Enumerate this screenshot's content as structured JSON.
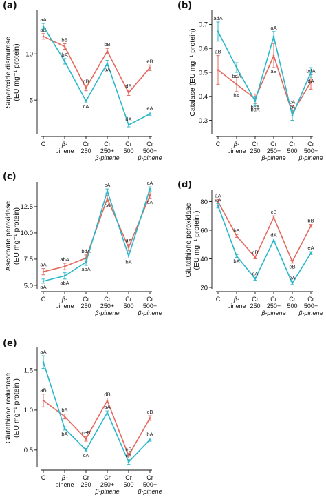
{
  "colors": {
    "control": "#2ab7c9",
    "treated": "#e4685d",
    "axis": "#111111"
  },
  "categories": [
    [
      "C"
    ],
    [
      "β-",
      "pinene"
    ],
    [
      "Cr",
      "250"
    ],
    [
      "Cr",
      "250+",
      "β-pinene"
    ],
    [
      "Cr",
      "500"
    ],
    [
      "Cr",
      "500+",
      "β-pinene"
    ]
  ],
  "chart_data": [
    {
      "type": "line",
      "panel": "(a)",
      "ylabel": [
        "Superoxide dismutase",
        "(EU mg⁻¹ protein)"
      ],
      "ylim": [
        1.5,
        14.5
      ],
      "yticks": [
        5,
        10
      ],
      "series": [
        {
          "color": "#2ab7c9",
          "values": [
            13.0,
            9.2,
            4.9,
            9.0,
            2.3,
            3.5
          ],
          "err": [
            0.3,
            0.3,
            0.2,
            0.3,
            0.2,
            0.2
          ],
          "labels": [
            "aA",
            "bA",
            "cA",
            "aA",
            "dA",
            "eA"
          ],
          "pos": [
            "above",
            "above",
            "below",
            "below",
            "above",
            "above"
          ]
        },
        {
          "color": "#e4685d",
          "values": [
            11.9,
            10.8,
            6.3,
            10.3,
            5.8,
            8.5
          ],
          "err": [
            0.3,
            0.3,
            0.3,
            0.3,
            0.3,
            0.3
          ],
          "labels": [
            "aB",
            "bB",
            "cB",
            "bB",
            "dB",
            "eB"
          ],
          "pos": [
            "above",
            "above",
            "above",
            "above",
            "above",
            "above"
          ]
        }
      ]
    },
    {
      "type": "line",
      "panel": "(b)",
      "ylabel": [
        "Catalase (EU mg⁻¹ protein)"
      ],
      "ylim": [
        0.25,
        0.75
      ],
      "yticks": [
        0.3,
        0.4,
        0.5,
        0.6,
        0.7
      ],
      "series": [
        {
          "color": "#2ab7c9",
          "values": [
            0.67,
            0.52,
            0.38,
            0.65,
            0.32,
            0.5
          ],
          "err": [
            0.04,
            0.02,
            0.02,
            0.02,
            0.02,
            0.02
          ],
          "labels": [
            "adA",
            "bdA",
            "bcA",
            "aA",
            "cA",
            "dA"
          ],
          "pos": [
            "above",
            "below",
            "below",
            "above",
            "above",
            "below"
          ]
        },
        {
          "color": "#e4685d",
          "values": [
            0.51,
            0.45,
            0.39,
            0.57,
            0.33,
            0.46
          ],
          "err": [
            0.06,
            0.03,
            0.02,
            0.05,
            0.03,
            0.03
          ],
          "labels": [
            "aB",
            "bA",
            "bcA",
            "aB",
            "cA",
            "bdA"
          ],
          "pos": [
            "above",
            "below",
            "below",
            "below",
            "above",
            "above"
          ]
        }
      ]
    },
    {
      "type": "line",
      "panel": "(c)",
      "ylabel": [
        "Ascorbate peroxidase",
        "(EU mg⁻¹ protein)"
      ],
      "ylim": [
        4.8,
        14.6
      ],
      "yticks": [
        5.0,
        7.5,
        10.0,
        12.5
      ],
      "series": [
        {
          "color": "#2ab7c9",
          "values": [
            5.4,
            5.9,
            7.2,
            14.0,
            7.8,
            14.2
          ],
          "err": [
            0.2,
            0.3,
            0.3,
            0.2,
            0.2,
            0.2
          ],
          "labels": [
            "aA",
            "abA",
            "abA",
            "cA",
            "bA",
            "cA"
          ],
          "pos": [
            "below",
            "below",
            "below",
            "above",
            "below",
            "above"
          ]
        },
        {
          "color": "#e4685d",
          "values": [
            6.3,
            6.8,
            7.6,
            13.3,
            8.6,
            13.6
          ],
          "err": [
            0.3,
            0.3,
            0.3,
            0.3,
            0.3,
            0.3
          ],
          "labels": [
            "aA",
            "abA",
            "bdA",
            "cA",
            "dA",
            "cA"
          ],
          "pos": [
            "above",
            "above",
            "above",
            "below",
            "above",
            "below"
          ]
        }
      ]
    },
    {
      "type": "line",
      "panel": "(d)",
      "ylabel": [
        "Glutathione peroxidase",
        "(EU mg⁻¹ protein )"
      ],
      "ylim": [
        20,
        86
      ],
      "yticks": [
        20,
        40,
        60,
        80
      ],
      "series": [
        {
          "color": "#2ab7c9",
          "values": [
            77,
            42,
            26,
            53,
            23,
            44
          ],
          "err": [
            1.5,
            1.0,
            1.0,
            1.0,
            1.0,
            1.0
          ],
          "labels": [
            "aA",
            "bA",
            "cA",
            "dA",
            "eA",
            "eA"
          ],
          "pos": [
            "above",
            "below",
            "above",
            "above",
            "above",
            "above"
          ]
        },
        {
          "color": "#e4685d",
          "values": [
            80,
            56,
            41,
            69,
            38,
            63
          ],
          "err": [
            1.5,
            1.0,
            1.0,
            1.0,
            1.0,
            1.0
          ],
          "labels": [
            "aA",
            "bB",
            "cB",
            "cB",
            "eB",
            "bB"
          ],
          "pos": [
            "above",
            "above",
            "above",
            "above",
            "below",
            "above"
          ]
        }
      ]
    },
    {
      "type": "line",
      "panel": "(e)",
      "ylabel": [
        "Glutathione reductase",
        "(EU mg⁻¹ protein )"
      ],
      "ylim": [
        0.3,
        1.75
      ],
      "yticks": [
        0.5,
        1.0,
        1.5
      ],
      "series": [
        {
          "color": "#2ab7c9",
          "values": [
            1.6,
            0.77,
            0.5,
            0.97,
            0.35,
            0.63
          ],
          "err": [
            0.08,
            0.02,
            0.02,
            0.02,
            0.03,
            0.02
          ],
          "labels": [
            "aA",
            "bA",
            "cA",
            "aA",
            "cA",
            "bA"
          ],
          "pos": [
            "above",
            "below",
            "below",
            "above",
            "above",
            "above"
          ]
        },
        {
          "color": "#e4685d",
          "values": [
            1.12,
            0.92,
            0.64,
            1.12,
            0.43,
            0.9
          ],
          "err": [
            0.08,
            0.03,
            0.03,
            0.03,
            0.03,
            0.03
          ],
          "labels": [
            "aB",
            "bB",
            "ceB",
            "dB",
            "eB",
            "cB"
          ],
          "pos": [
            "above",
            "above",
            "above",
            "above",
            "above",
            "above"
          ]
        }
      ]
    }
  ]
}
